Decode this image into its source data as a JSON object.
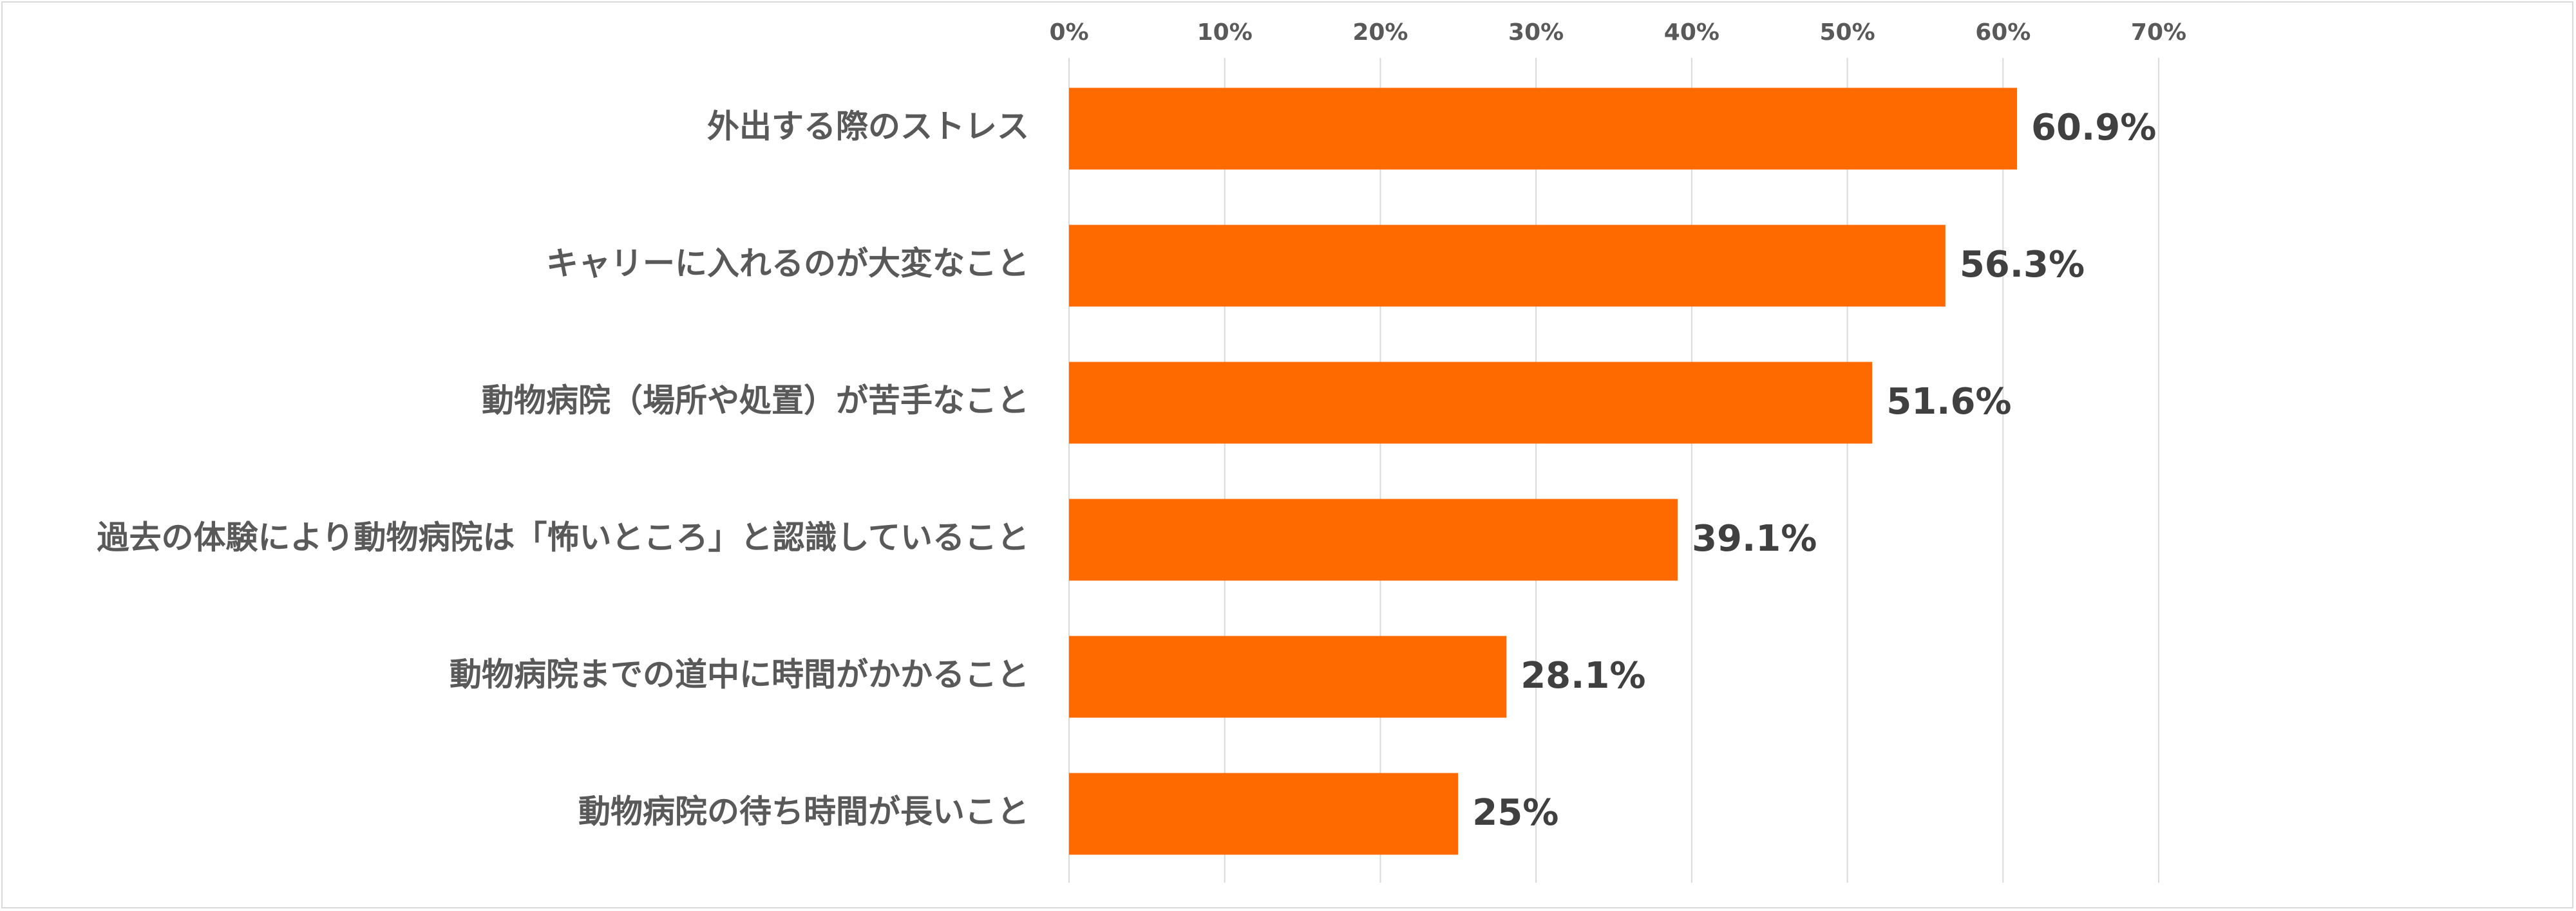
{
  "chart_data": {
    "type": "bar",
    "orientation": "horizontal",
    "categories": [
      "外出する際のストレス",
      "キャリーに入れるのが大変なこと",
      "動物病院（場所や処置）が苦手なこと",
      "過去の体験により動物病院は「怖いところ」と認識していること",
      "動物病院までの道中に時間がかかること",
      "動物病院の待ち時間が長いこと"
    ],
    "values": [
      60.9,
      56.3,
      51.6,
      39.1,
      28.1,
      25
    ],
    "value_labels": [
      "60.9%",
      "56.3%",
      "51.6%",
      "39.1%",
      "28.1%",
      "25%"
    ],
    "xlim": [
      0,
      70
    ],
    "x_ticks": [
      0,
      10,
      20,
      30,
      40,
      50,
      60,
      70
    ],
    "x_tick_labels": [
      "0%",
      "10%",
      "20%",
      "30%",
      "40%",
      "50%",
      "60%",
      "70%"
    ],
    "x_axis_position": "top",
    "grid": true,
    "bar_color": "#FF6A00",
    "title": "",
    "xlabel": "",
    "ylabel": ""
  }
}
